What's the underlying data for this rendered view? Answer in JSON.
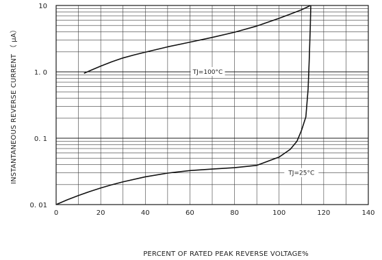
{
  "chart_data": {
    "type": "line",
    "xlabel": "PERCENT OF RATED PEAK REVERSE VOLTAGE%",
    "ylabel": "INSTANTANEOUS REVERSE CURRENT （ µA）",
    "xlim": [
      0,
      140
    ],
    "ylim": [
      0.01,
      10
    ],
    "y_scale": "log",
    "grid": true,
    "x_ticks": [
      "0",
      "20",
      "40",
      "60",
      "80",
      "100",
      "120",
      "140"
    ],
    "y_ticks": [
      {
        "value": 0.01,
        "label": "0. 01"
      },
      {
        "value": 0.1,
        "label": "0. 1"
      },
      {
        "value": 1,
        "label": "1. 0"
      },
      {
        "value": 10,
        "label": "10"
      }
    ],
    "series": [
      {
        "name": "TJ=100°C",
        "label_at": {
          "x": 68,
          "y": 1.0
        },
        "x": [
          12.5,
          16,
          20,
          25,
          30,
          35,
          40,
          50,
          60,
          70,
          80,
          90,
          100,
          105,
          110,
          113,
          114
        ],
        "y": [
          0.95,
          1.07,
          1.22,
          1.42,
          1.62,
          1.8,
          1.98,
          2.38,
          2.8,
          3.3,
          3.95,
          4.9,
          6.4,
          7.4,
          8.6,
          9.6,
          10
        ]
      },
      {
        "name": "TJ=25°C",
        "label_at": {
          "x": 110,
          "y": 0.03
        },
        "x": [
          0,
          5,
          10,
          15,
          20,
          25,
          30,
          40,
          50,
          60,
          70,
          80,
          90,
          100,
          105,
          108,
          110,
          112,
          113,
          113.5,
          114,
          114.2
        ],
        "y": [
          0.01,
          0.0118,
          0.0137,
          0.0157,
          0.0178,
          0.0199,
          0.022,
          0.0262,
          0.0298,
          0.0325,
          0.0343,
          0.036,
          0.039,
          0.052,
          0.068,
          0.09,
          0.13,
          0.21,
          0.55,
          1.5,
          5.0,
          10
        ]
      }
    ]
  }
}
